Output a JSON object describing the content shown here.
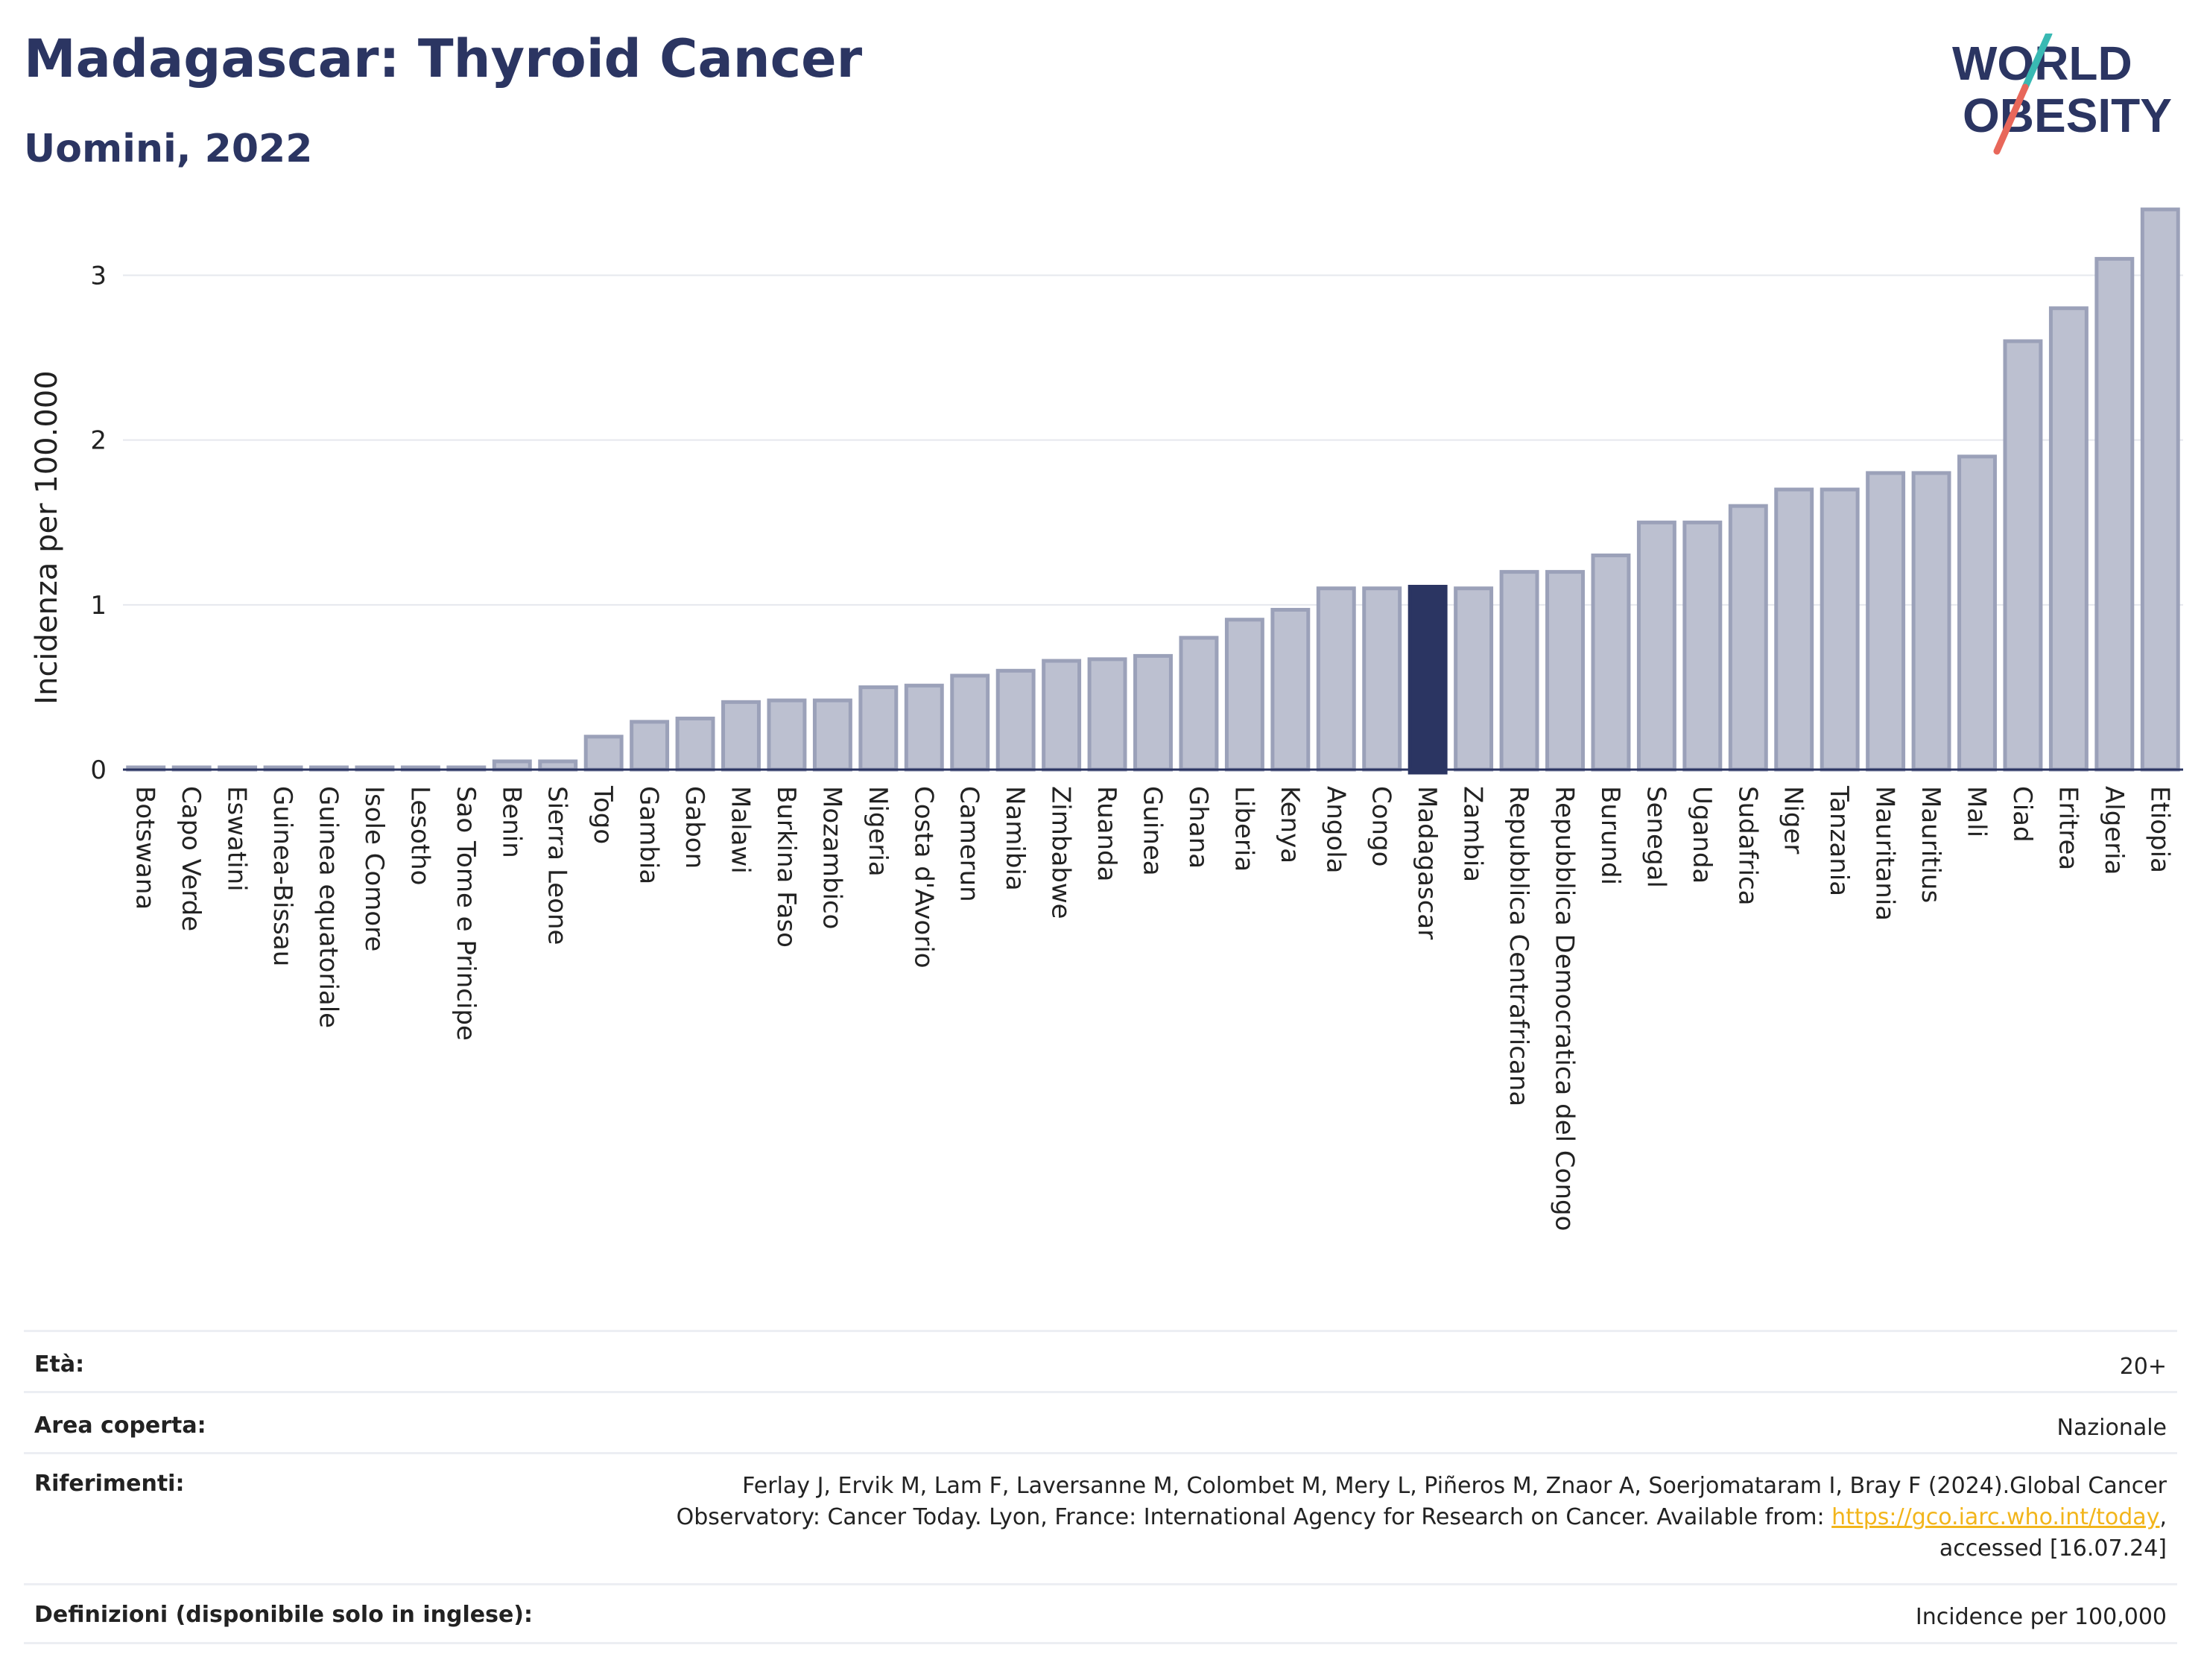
{
  "header": {
    "title": "Madagascar: Thyroid Cancer",
    "subtitle": "Uomini, 2022"
  },
  "logo": {
    "line1": "WORLD",
    "line2": "OBESITY",
    "colors": {
      "text": "#2b3562",
      "slash_teal": "#39b9b3",
      "slash_red": "#e8675a"
    }
  },
  "colors": {
    "bar": "#bcc0d0",
    "bar_stroke": "#9ba1b9",
    "highlight": "#2b3562",
    "grid": "#e6e8ee",
    "axis": "#2b3562"
  },
  "chart_data": {
    "type": "bar",
    "ylabel": "Incidenza per 100.000",
    "ylim": [
      0,
      3.45
    ],
    "yticks": [
      0,
      1,
      2,
      3
    ],
    "grid": true,
    "highlight": "Madagascar",
    "categories": [
      "Botswana",
      "Capo Verde",
      "Eswatini",
      "Guinea-Bissau",
      "Guinea equatoriale",
      "Isole Comore",
      "Lesotho",
      "Sao Tome e Principe",
      "Benin",
      "Sierra Leone",
      "Togo",
      "Gambia",
      "Gabon",
      "Malawi",
      "Burkina Faso",
      "Mozambico",
      "Nigeria",
      "Costa d'Avorio",
      "Camerun",
      "Namibia",
      "Zimbabwe",
      "Ruanda",
      "Guinea",
      "Ghana",
      "Liberia",
      "Kenya",
      "Angola",
      "Congo",
      "Madagascar",
      "Zambia",
      "Repubblica Centrafricana",
      "Repubblica Democratica del Congo",
      "Burundi",
      "Senegal",
      "Uganda",
      "Sudafrica",
      "Niger",
      "Tanzania",
      "Mauritania",
      "Mauritius",
      "Mali",
      "Ciad",
      "Eritrea",
      "Algeria",
      "Etiopia"
    ],
    "values": [
      0.01,
      0.01,
      0.01,
      0.01,
      0.01,
      0.01,
      0.01,
      0.01,
      0.05,
      0.05,
      0.2,
      0.29,
      0.31,
      0.41,
      0.42,
      0.42,
      0.5,
      0.51,
      0.57,
      0.6,
      0.66,
      0.67,
      0.69,
      0.8,
      0.91,
      0.97,
      1.1,
      1.1,
      1.11,
      1.1,
      1.2,
      1.2,
      1.3,
      1.5,
      1.5,
      1.6,
      1.7,
      1.7,
      1.8,
      1.8,
      1.9,
      2.6,
      2.8,
      3.1,
      3.4
    ]
  },
  "info": [
    {
      "label": "Età:",
      "value": "20+"
    },
    {
      "label": "Area coperta:",
      "value": "Nazionale"
    },
    {
      "label": "Riferimenti:",
      "value_line1": "Ferlay J, Ervik M, Lam F, Laversanne M, Colombet M, Mery L, Piñeros M, Znaor A, Soerjomataram I, Bray F (2024).Global Cancer",
      "value_line2_pre": "Observatory: Cancer Today. Lyon, France: International Agency for Research on Cancer. Available from: ",
      "link": "https://gco.iarc.who.int/today",
      "value_line2_post": ",",
      "value_line3": "accessed [16.07.24]"
    },
    {
      "label": "Definizioni (disponibile solo in inglese):",
      "value": "Incidence per 100,000"
    }
  ]
}
